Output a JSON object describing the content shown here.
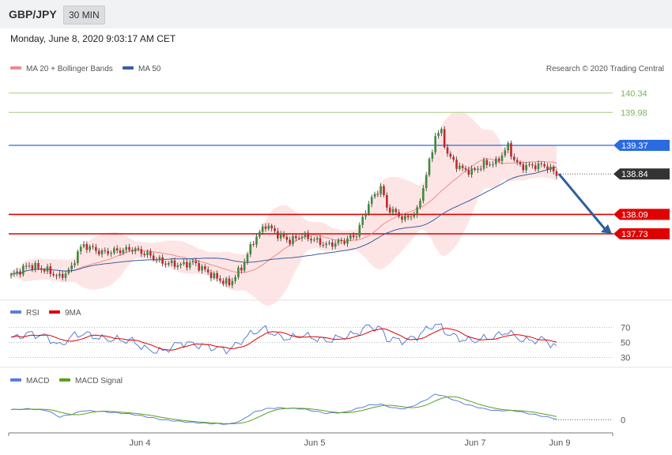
{
  "header": {
    "symbol": "GBP/JPY",
    "timeframe": "30 MIN"
  },
  "datetime": "Monday, June 8, 2020 9:03:17 AM CET",
  "chart_data": [
    {
      "type": "candlestick",
      "legend": [
        {
          "label": "MA 20 + Bollinger Bands",
          "color": "#f08a8a"
        },
        {
          "label": "MA 50",
          "color": "#3a5fa0"
        }
      ],
      "credit": "Research © 2020 Trading Central",
      "ylim": [
        136.5,
        140.6
      ],
      "x_ticks": [
        "Jun 4",
        "Jun 5",
        "Jun 7",
        "Jun 9"
      ],
      "levels": [
        {
          "value": 140.34,
          "label": "140.34",
          "kind": "target",
          "color": "#7db35a"
        },
        {
          "value": 139.98,
          "label": "139.98",
          "kind": "target",
          "color": "#7db35a"
        },
        {
          "value": 139.37,
          "label": "139.37",
          "kind": "pivot",
          "color": "#2a6be0"
        },
        {
          "value": 138.84,
          "label": "138.84",
          "kind": "last",
          "color": "#333333"
        },
        {
          "value": 138.09,
          "label": "138.09",
          "kind": "support",
          "color": "#dd0000"
        },
        {
          "value": 137.73,
          "label": "137.73",
          "kind": "support",
          "color": "#dd0000"
        }
      ],
      "forecast": {
        "from": 138.84,
        "to": 137.73
      },
      "close_anchors": [
        [
          0,
          136.95
        ],
        [
          6,
          137.15
        ],
        [
          12,
          137.05
        ],
        [
          16,
          136.92
        ],
        [
          20,
          137.1
        ],
        [
          22,
          137.4
        ],
        [
          24,
          137.52
        ],
        [
          30,
          137.38
        ],
        [
          40,
          137.45
        ],
        [
          45,
          137.35
        ],
        [
          50,
          137.2
        ],
        [
          56,
          137.15
        ],
        [
          60,
          137.2
        ],
        [
          64,
          137.05
        ],
        [
          68,
          136.9
        ],
        [
          72,
          136.8
        ],
        [
          76,
          137.1
        ],
        [
          80,
          137.6
        ],
        [
          84,
          137.9
        ],
        [
          88,
          137.72
        ],
        [
          92,
          137.6
        ],
        [
          96,
          137.7
        ],
        [
          100,
          137.62
        ],
        [
          104,
          137.52
        ],
        [
          110,
          137.6
        ],
        [
          114,
          137.72
        ],
        [
          118,
          138.3
        ],
        [
          122,
          138.6
        ],
        [
          124,
          138.22
        ],
        [
          130,
          138.0
        ],
        [
          134,
          138.15
        ],
        [
          136,
          138.6
        ],
        [
          138,
          139.05
        ],
        [
          140,
          139.55
        ],
        [
          142,
          139.62
        ],
        [
          144,
          139.2
        ],
        [
          148,
          138.95
        ],
        [
          152,
          138.88
        ],
        [
          156,
          139.02
        ],
        [
          160,
          139.05
        ],
        [
          162,
          139.2
        ],
        [
          164,
          139.35
        ],
        [
          166,
          139.1
        ],
        [
          168,
          138.98
        ],
        [
          176,
          139.0
        ],
        [
          180,
          138.84
        ]
      ]
    },
    {
      "type": "line",
      "name": "RSI",
      "legend": [
        {
          "label": "RSI",
          "color": "#5b7ed6"
        },
        {
          "label": "9MA",
          "color": "#dd0000"
        }
      ],
      "ylim": [
        20,
        80
      ],
      "y_ticks": [
        70,
        50,
        30
      ],
      "anchors": [
        [
          0,
          55
        ],
        [
          6,
          62
        ],
        [
          12,
          57
        ],
        [
          16,
          45
        ],
        [
          20,
          58
        ],
        [
          24,
          62
        ],
        [
          30,
          55
        ],
        [
          40,
          52
        ],
        [
          45,
          40
        ],
        [
          50,
          38
        ],
        [
          56,
          50
        ],
        [
          64,
          45
        ],
        [
          68,
          42
        ],
        [
          72,
          40
        ],
        [
          76,
          52
        ],
        [
          80,
          64
        ],
        [
          84,
          68
        ],
        [
          88,
          58
        ],
        [
          92,
          55
        ],
        [
          96,
          60
        ],
        [
          100,
          56
        ],
        [
          104,
          52
        ],
        [
          110,
          58
        ],
        [
          114,
          62
        ],
        [
          118,
          72
        ],
        [
          122,
          68
        ],
        [
          124,
          55
        ],
        [
          130,
          52
        ],
        [
          134,
          58
        ],
        [
          138,
          70
        ],
        [
          140,
          74
        ],
        [
          142,
          70
        ],
        [
          144,
          62
        ],
        [
          148,
          55
        ],
        [
          152,
          52
        ],
        [
          156,
          55
        ],
        [
          160,
          58
        ],
        [
          164,
          65
        ],
        [
          166,
          58
        ],
        [
          170,
          52
        ],
        [
          176,
          54
        ],
        [
          180,
          43
        ]
      ]
    },
    {
      "type": "line",
      "name": "MACD",
      "legend": [
        {
          "label": "MACD",
          "color": "#5b7ed6"
        },
        {
          "label": "MACD Signal",
          "color": "#5aa020"
        }
      ],
      "ylim": [
        -0.12,
        0.36
      ],
      "y_ticks": [
        0
      ],
      "anchors": [
        [
          0,
          0.11
        ],
        [
          6,
          0.12
        ],
        [
          12,
          0.1
        ],
        [
          16,
          0.03
        ],
        [
          20,
          0.06
        ],
        [
          24,
          0.1
        ],
        [
          30,
          0.09
        ],
        [
          40,
          0.06
        ],
        [
          50,
          0.0
        ],
        [
          56,
          -0.02
        ],
        [
          64,
          -0.04
        ],
        [
          72,
          -0.05
        ],
        [
          76,
          -0.01
        ],
        [
          80,
          0.08
        ],
        [
          84,
          0.12
        ],
        [
          88,
          0.13
        ],
        [
          96,
          0.12
        ],
        [
          104,
          0.07
        ],
        [
          110,
          0.08
        ],
        [
          114,
          0.12
        ],
        [
          118,
          0.16
        ],
        [
          122,
          0.17
        ],
        [
          126,
          0.13
        ],
        [
          130,
          0.12
        ],
        [
          134,
          0.17
        ],
        [
          138,
          0.24
        ],
        [
          140,
          0.28
        ],
        [
          142,
          0.27
        ],
        [
          146,
          0.22
        ],
        [
          150,
          0.17
        ],
        [
          156,
          0.12
        ],
        [
          160,
          0.1
        ],
        [
          166,
          0.1
        ],
        [
          172,
          0.06
        ],
        [
          180,
          0.01
        ]
      ]
    }
  ]
}
